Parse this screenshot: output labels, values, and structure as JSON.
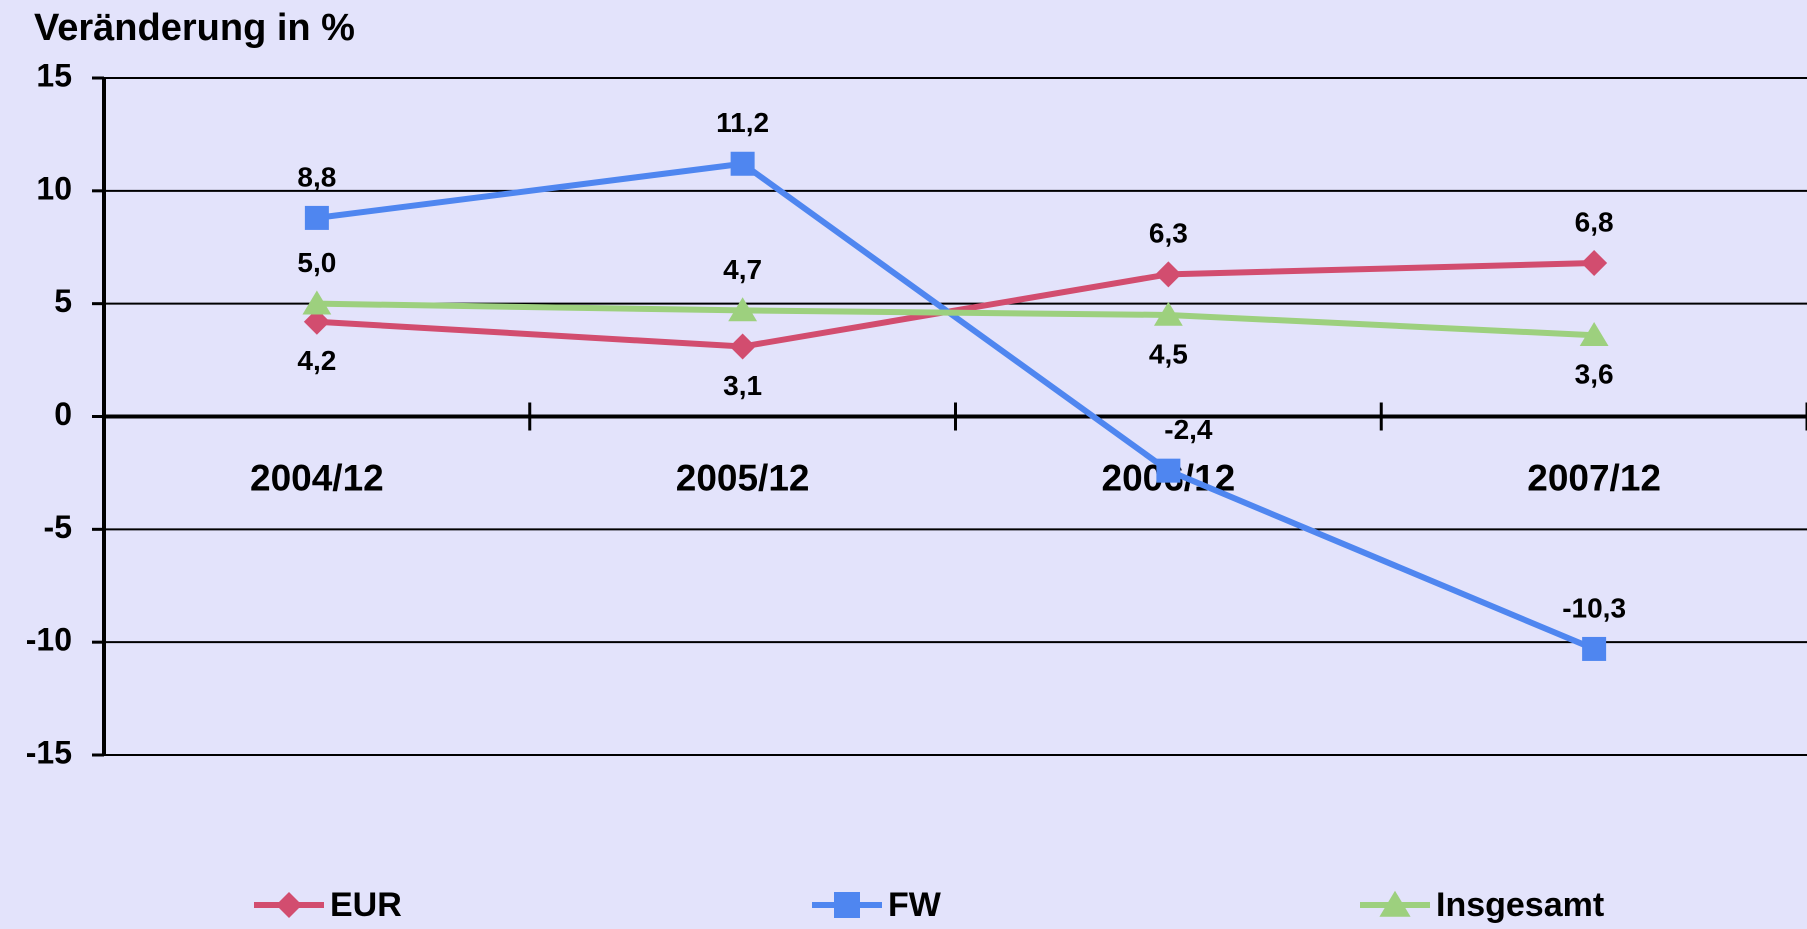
{
  "chart_data": {
    "type": "line",
    "title": "Veränderung in %",
    "categories": [
      "2004/12",
      "2005/12",
      "2006/12",
      "2007/12"
    ],
    "series": [
      {
        "name": "EUR",
        "color": "#d24d6f",
        "marker": "diamond",
        "values": [
          4.2,
          3.1,
          6.3,
          6.8
        ],
        "value_labels": [
          "4,2",
          "3,1",
          "6,3",
          "6,8"
        ]
      },
      {
        "name": "FW",
        "color": "#4f86f0",
        "marker": "square",
        "values": [
          8.8,
          11.2,
          -2.4,
          -10.3
        ],
        "value_labels": [
          "8,8",
          "11,2",
          "-2,4",
          "-10,3"
        ]
      },
      {
        "name": "Insgesamt",
        "color": "#9dd07e",
        "marker": "triangle",
        "values": [
          5.0,
          4.7,
          4.5,
          3.6
        ],
        "value_labels": [
          "5,0",
          "4,7",
          "4,5",
          "3,6"
        ]
      }
    ],
    "ylim": [
      -15,
      15
    ],
    "yticks": [
      -15,
      -10,
      -5,
      0,
      5,
      10,
      15
    ],
    "grid": true,
    "legend": "bottom"
  }
}
